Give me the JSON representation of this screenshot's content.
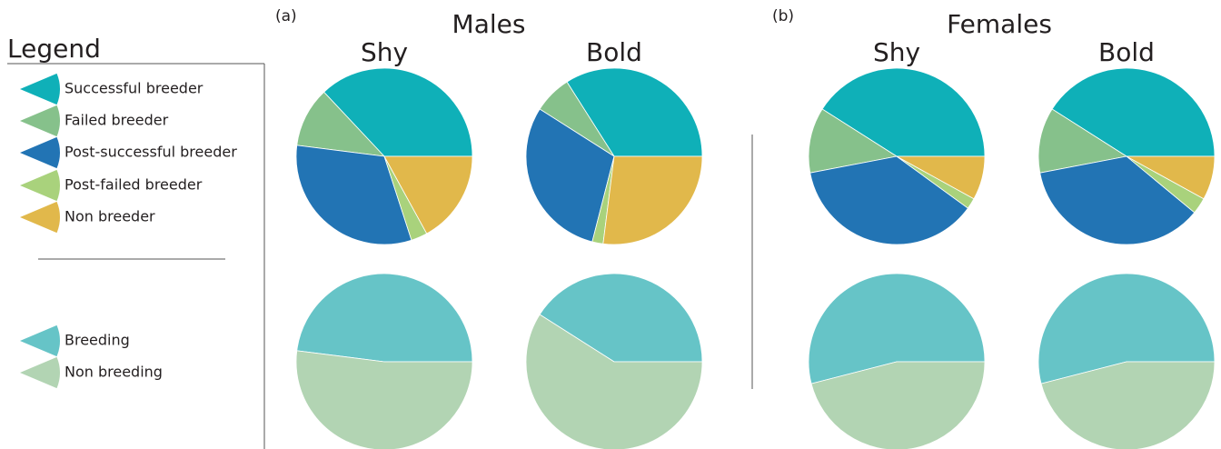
{
  "legend": {
    "title": "Legend"
  },
  "panels": [
    {
      "label": "(a)",
      "title": "Males"
    },
    {
      "label": "(b)",
      "title": "Females"
    }
  ],
  "chart_data": [
    {
      "type": "pie",
      "title": "Shy",
      "categories": [
        "Successful breeder",
        "Failed breeder",
        "Post-successful breeder",
        "Post-failed breeder",
        "Non breeder"
      ],
      "values": [
        37,
        11,
        32,
        3,
        17
      ],
      "colors": [
        "#0fb0b8",
        "#86c18b",
        "#2274b4",
        "#a9d27c",
        "#e1b84b"
      ]
    },
    {
      "type": "pie",
      "title": "Bold",
      "categories": [
        "Successful breeder",
        "Failed breeder",
        "Post-successful breeder",
        "Post-failed breeder",
        "Non breeder"
      ],
      "values": [
        34,
        7,
        30,
        2,
        27
      ],
      "colors": [
        "#0fb0b8",
        "#86c18b",
        "#2274b4",
        "#a9d27c",
        "#e1b84b"
      ]
    },
    {
      "type": "pie",
      "title": "Shy",
      "categories": [
        "Successful breeder",
        "Failed breeder",
        "Post-successful breeder",
        "Post-failed breeder",
        "Non breeder"
      ],
      "values": [
        41,
        12,
        37,
        2,
        8
      ],
      "colors": [
        "#0fb0b8",
        "#86c18b",
        "#2274b4",
        "#a9d27c",
        "#e1b84b"
      ]
    },
    {
      "type": "pie",
      "title": "Bold",
      "categories": [
        "Successful breeder",
        "Failed breeder",
        "Post-successful breeder",
        "Post-failed breeder",
        "Non breeder"
      ],
      "values": [
        41,
        12,
        36,
        3,
        8
      ],
      "colors": [
        "#0fb0b8",
        "#86c18b",
        "#2274b4",
        "#a9d27c",
        "#e1b84b"
      ]
    },
    {
      "type": "pie",
      "categories": [
        "Breeding",
        "Non breeding"
      ],
      "values": [
        48,
        52
      ],
      "colors": [
        "#66c4c7",
        "#b2d4b3"
      ]
    },
    {
      "type": "pie",
      "categories": [
        "Breeding",
        "Non breeding"
      ],
      "values": [
        41,
        59
      ],
      "colors": [
        "#66c4c7",
        "#b2d4b3"
      ]
    },
    {
      "type": "pie",
      "categories": [
        "Breeding",
        "Non breeding"
      ],
      "values": [
        54,
        46
      ],
      "colors": [
        "#66c4c7",
        "#b2d4b3"
      ]
    },
    {
      "type": "pie",
      "categories": [
        "Breeding",
        "Non breeding"
      ],
      "values": [
        54,
        46
      ],
      "colors": [
        "#66c4c7",
        "#b2d4b3"
      ]
    }
  ]
}
